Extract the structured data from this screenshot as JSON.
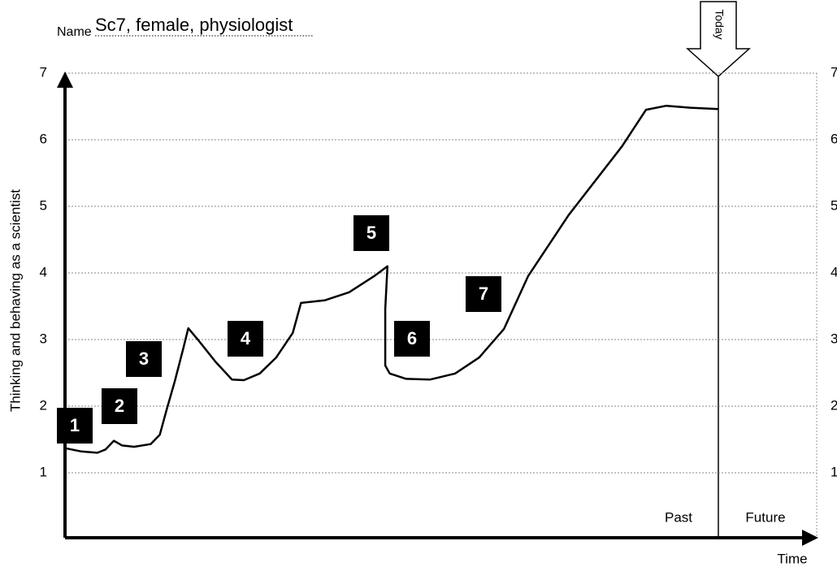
{
  "chart_data": {
    "type": "line",
    "name_label": "Name",
    "name": "Sc7, female, physiologist",
    "ylabel": "Thinking and behaving as a scientist",
    "xlabel": "Time",
    "today": "Today",
    "past": "Past",
    "future": "Future",
    "ylim": [
      0,
      7
    ],
    "yticks": [
      1,
      2,
      3,
      4,
      5,
      6,
      7
    ],
    "xlim": [
      0,
      100
    ],
    "grid": true,
    "annotations": [
      "1",
      "2",
      "3",
      "4",
      "5",
      "6",
      "7"
    ],
    "series": [
      {
        "color": "#000000",
        "x": [
          0,
          2.2,
          4.3,
          5.4,
          6.5,
          7.6,
          9.2,
          11.4,
          12.6,
          13.5,
          14.6,
          15.7,
          16.4,
          17.8,
          20,
          22.2,
          23.8,
          25.9,
          28.1,
          30.3,
          31.4,
          34.6,
          37.8,
          41.1,
          42.9,
          42.6,
          42.6,
          43.2,
          45.4,
          48.6,
          51.9,
          55.1,
          58.4,
          61.6,
          67,
          74.1,
          77.3,
          80,
          83.2,
          86.9
        ],
        "values": [
          1.37,
          1.32,
          1.3,
          1.35,
          1.48,
          1.41,
          1.39,
          1.43,
          1.57,
          1.94,
          2.37,
          2.85,
          3.17,
          2.98,
          2.67,
          2.4,
          2.39,
          2.49,
          2.73,
          3.1,
          3.55,
          3.59,
          3.71,
          3.95,
          4.1,
          3.46,
          2.61,
          2.49,
          2.41,
          2.4,
          2.49,
          2.73,
          3.16,
          3.95,
          4.87,
          5.9,
          6.45,
          6.51,
          6.48,
          6.46
        ]
      }
    ]
  }
}
